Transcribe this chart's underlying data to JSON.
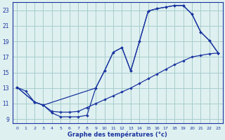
{
  "background_color": "#dff0f0",
  "grid_color": "#a8cccc",
  "line_color": "#1a35a0",
  "xlabel": "Graphe des températures (°c)",
  "xlim": [
    -0.5,
    23.5
  ],
  "ylim": [
    8.5,
    24.0
  ],
  "xticks": [
    0,
    1,
    2,
    3,
    4,
    5,
    6,
    7,
    8,
    9,
    10,
    11,
    12,
    13,
    14,
    15,
    16,
    17,
    18,
    19,
    20,
    21,
    22,
    23
  ],
  "yticks": [
    9,
    11,
    13,
    15,
    17,
    19,
    21,
    23
  ],
  "line1_x": [
    0,
    1,
    2,
    3,
    4,
    5,
    6,
    7,
    8,
    9,
    10,
    11,
    12,
    13,
    14,
    15,
    16,
    17,
    18,
    19,
    20,
    21,
    22,
    23
  ],
  "line1_y": [
    13.1,
    12.6,
    11.2,
    10.8,
    10.0,
    9.9,
    9.9,
    10.0,
    10.5,
    11.0,
    11.5,
    12.0,
    12.5,
    13.0,
    13.6,
    14.2,
    14.8,
    15.4,
    16.0,
    16.5,
    17.0,
    17.2,
    17.4,
    17.5
  ],
  "line2_x": [
    0,
    2,
    3,
    4,
    5,
    6,
    7,
    8,
    9,
    10,
    11,
    12,
    13,
    14,
    15,
    16,
    17,
    18,
    19,
    20,
    21,
    22,
    23
  ],
  "line2_y": [
    13.1,
    11.2,
    10.8,
    9.8,
    9.3,
    9.3,
    9.3,
    9.5,
    13.0,
    15.2,
    17.6,
    18.2,
    15.2,
    19.0,
    22.9,
    23.2,
    23.4,
    23.6,
    23.6,
    22.5,
    20.2,
    19.1,
    17.5
  ],
  "line3_x": [
    0,
    2,
    3,
    9,
    10,
    11,
    12,
    13,
    14,
    15,
    16,
    17,
    18,
    19,
    20,
    21,
    22,
    23
  ],
  "line3_y": [
    13.1,
    11.2,
    10.8,
    13.0,
    15.2,
    17.6,
    18.2,
    15.2,
    19.0,
    22.9,
    23.2,
    23.4,
    23.6,
    23.6,
    22.5,
    20.2,
    19.1,
    17.5
  ]
}
